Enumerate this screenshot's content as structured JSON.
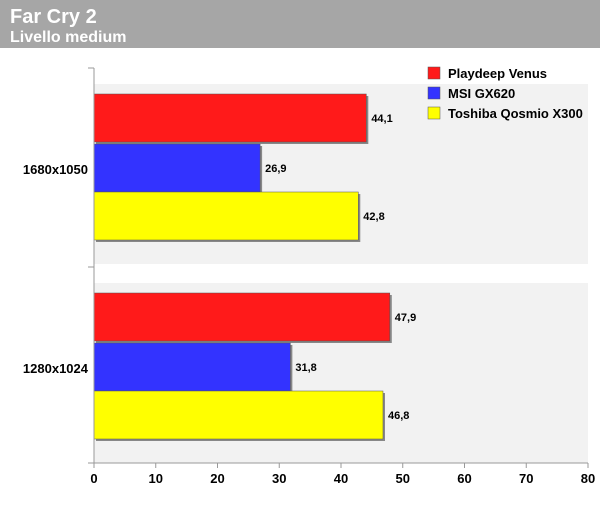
{
  "chart_data": {
    "type": "bar",
    "orientation": "horizontal",
    "title": "Far Cry 2",
    "subtitle": "Livello medium",
    "categories": [
      "1680x1050",
      "1280x1024"
    ],
    "series": [
      {
        "name": "Playdeep Venus",
        "color": "#ff1a1a",
        "values": [
          44.1,
          47.9
        ],
        "labels": [
          "44,1",
          "47,9"
        ]
      },
      {
        "name": "MSI GX620",
        "color": "#3333ff",
        "values": [
          26.9,
          31.8
        ],
        "labels": [
          "26,9",
          "31,8"
        ]
      },
      {
        "name": "Toshiba Qosmio X300",
        "color": "#ffff00",
        "values": [
          42.8,
          46.8
        ],
        "labels": [
          "42,8",
          "46,8"
        ]
      }
    ],
    "xlim": [
      0,
      80
    ],
    "xticks": [
      0,
      10,
      20,
      30,
      40,
      50,
      60,
      70,
      80
    ],
    "grid": false,
    "legend_position": "top-right",
    "header_color": "#a6a6a6",
    "band_color": "#f2f2f2"
  }
}
